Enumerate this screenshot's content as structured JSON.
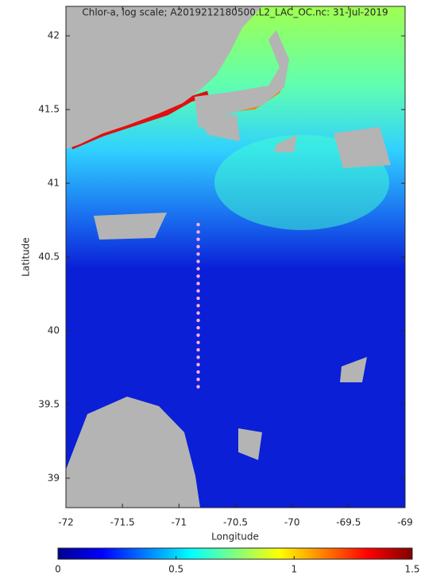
{
  "chart_data": {
    "type": "scatter",
    "title": "Chlor-a, log scale; A2019212180500.L2_LAC_OC.nc: 31-Jul-2019",
    "xlabel": "Longitude",
    "ylabel": "Latitude",
    "xlim": [
      -72,
      -69
    ],
    "ylim": [
      38.8,
      42.2
    ],
    "xticks": [
      -72,
      -71.5,
      -71,
      -70.5,
      -70,
      -69.5,
      -69
    ],
    "yticks": [
      39,
      39.5,
      40,
      40.5,
      41,
      41.5,
      42
    ],
    "x": [
      -70.83,
      -70.83,
      -70.83,
      -70.83,
      -70.83,
      -70.83,
      -70.83,
      -70.83,
      -70.83,
      -70.83,
      -70.83,
      -70.83,
      -70.83,
      -70.83,
      -70.83,
      -70.83,
      -70.83,
      -70.83,
      -70.83,
      -70.83,
      -70.83,
      -70.83,
      -70.83
    ],
    "y": [
      40.72,
      40.67,
      40.62,
      40.57,
      40.52,
      40.47,
      40.42,
      40.37,
      40.32,
      40.27,
      40.22,
      40.17,
      40.12,
      40.07,
      40.02,
      39.97,
      39.92,
      39.87,
      39.82,
      39.77,
      39.72,
      39.67,
      39.62
    ],
    "color": "#ffb0e0",
    "colorbar": {
      "lim": [
        0,
        1.5
      ],
      "ticks": [
        0,
        0.5,
        1,
        1.5
      ]
    }
  }
}
